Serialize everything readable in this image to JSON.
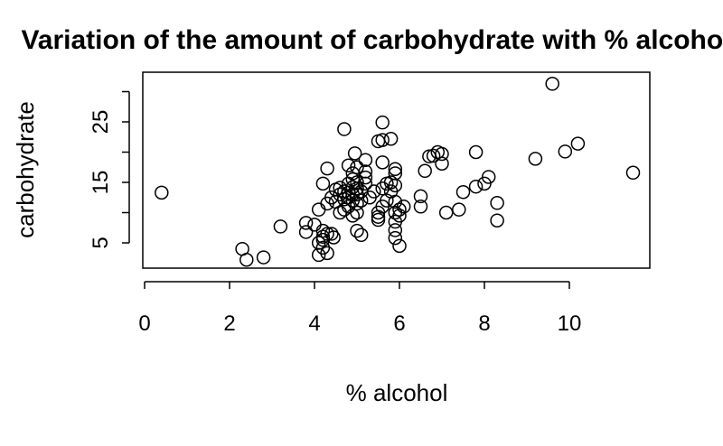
{
  "chart_data": {
    "type": "scatter",
    "title": "Variation of the amount of carbohydrate with % alcohol",
    "xlabel": "% alcohol",
    "ylabel": "carbohydrate",
    "xlim": [
      0,
      12
    ],
    "ylim": [
      1,
      34
    ],
    "x_ticks": [
      0,
      2,
      4,
      6,
      8,
      10
    ],
    "y_ticks": [
      5,
      15,
      25
    ],
    "grid": false,
    "points": [
      [
        0.4,
        13.3
      ],
      [
        2.3,
        4.0
      ],
      [
        2.4,
        2.2
      ],
      [
        2.8,
        2.6
      ],
      [
        3.2,
        7.7
      ],
      [
        3.8,
        8.3
      ],
      [
        3.8,
        6.8
      ],
      [
        4.0,
        8.0
      ],
      [
        4.1,
        3.0
      ],
      [
        4.1,
        5.0
      ],
      [
        4.1,
        10.5
      ],
      [
        4.2,
        4.2
      ],
      [
        4.2,
        6.0
      ],
      [
        4.2,
        7.0
      ],
      [
        4.2,
        5.5
      ],
      [
        4.2,
        14.8
      ],
      [
        4.3,
        3.3
      ],
      [
        4.3,
        6.5
      ],
      [
        4.3,
        11.5
      ],
      [
        4.3,
        17.3
      ],
      [
        4.4,
        12.5
      ],
      [
        4.4,
        6.5
      ],
      [
        4.45,
        5.9
      ],
      [
        4.5,
        13.8
      ],
      [
        4.5,
        11.8
      ],
      [
        4.6,
        10.0
      ],
      [
        4.6,
        13.0
      ],
      [
        4.6,
        14.1
      ],
      [
        4.7,
        10.5
      ],
      [
        4.7,
        12.2
      ],
      [
        4.7,
        23.8
      ],
      [
        4.7,
        13.5
      ],
      [
        4.8,
        11.0
      ],
      [
        4.8,
        12.5
      ],
      [
        4.8,
        13.3
      ],
      [
        4.8,
        14.8
      ],
      [
        4.8,
        17.8
      ],
      [
        4.9,
        9.5
      ],
      [
        4.9,
        12.0
      ],
      [
        4.9,
        13.0
      ],
      [
        4.9,
        14.2
      ],
      [
        4.9,
        15.5
      ],
      [
        4.9,
        16.5
      ],
      [
        4.95,
        19.8
      ],
      [
        5.0,
        10.0
      ],
      [
        5.0,
        11.5
      ],
      [
        5.0,
        13.0
      ],
      [
        5.0,
        14.0
      ],
      [
        5.0,
        15.0
      ],
      [
        5.0,
        17.5
      ],
      [
        5.0,
        7.0
      ],
      [
        5.1,
        6.3
      ],
      [
        5.1,
        12.0
      ],
      [
        5.1,
        13.5
      ],
      [
        5.2,
        14.8
      ],
      [
        5.2,
        15.8
      ],
      [
        5.2,
        16.8
      ],
      [
        5.2,
        18.7
      ],
      [
        5.3,
        12.5
      ],
      [
        5.4,
        13.5
      ],
      [
        5.5,
        8.8
      ],
      [
        5.5,
        9.3
      ],
      [
        5.5,
        10.0
      ],
      [
        5.5,
        21.8
      ],
      [
        5.6,
        11.0
      ],
      [
        5.6,
        14.0
      ],
      [
        5.6,
        18.3
      ],
      [
        5.6,
        22.0
      ],
      [
        5.6,
        24.9
      ],
      [
        5.7,
        12.0
      ],
      [
        5.7,
        14.8
      ],
      [
        5.8,
        13.5
      ],
      [
        5.8,
        15.0
      ],
      [
        5.8,
        22.2
      ],
      [
        5.9,
        5.8
      ],
      [
        5.9,
        7.1
      ],
      [
        5.9,
        8.5
      ],
      [
        5.9,
        10.0
      ],
      [
        5.9,
        11.8
      ],
      [
        5.9,
        14.5
      ],
      [
        5.9,
        16.5
      ],
      [
        5.9,
        17.2
      ],
      [
        6.0,
        4.5
      ],
      [
        6.0,
        9.5
      ],
      [
        6.0,
        10.5
      ],
      [
        6.1,
        11.0
      ],
      [
        6.5,
        11.0
      ],
      [
        6.5,
        12.7
      ],
      [
        6.6,
        16.9
      ],
      [
        6.7,
        19.3
      ],
      [
        6.8,
        19.4
      ],
      [
        6.9,
        20.0
      ],
      [
        7.0,
        18.1
      ],
      [
        7.0,
        19.7
      ],
      [
        7.1,
        10.0
      ],
      [
        7.4,
        10.5
      ],
      [
        7.5,
        13.4
      ],
      [
        7.8,
        14.3
      ],
      [
        7.8,
        20.0
      ],
      [
        8.0,
        14.8
      ],
      [
        8.1,
        15.9
      ],
      [
        8.3,
        11.6
      ],
      [
        8.3,
        8.7
      ],
      [
        9.2,
        18.9
      ],
      [
        9.6,
        31.3
      ],
      [
        9.9,
        20.1
      ],
      [
        10.2,
        21.4
      ],
      [
        11.5,
        16.6
      ]
    ]
  }
}
